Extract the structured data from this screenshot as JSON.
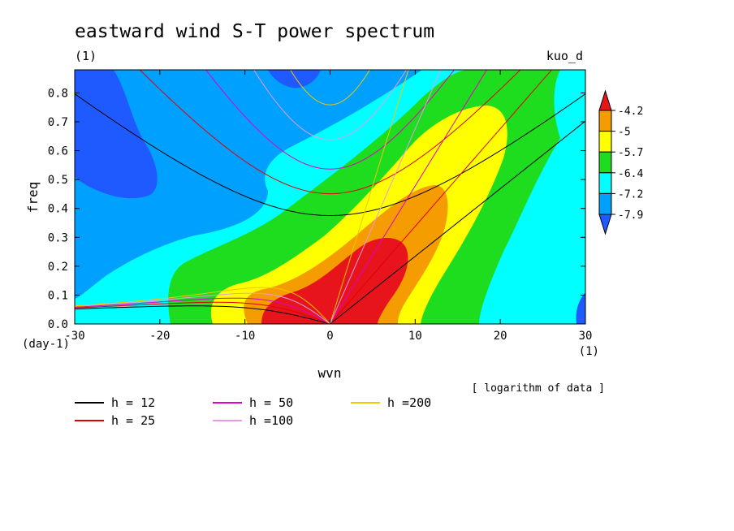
{
  "chart_data": {
    "type": "heatmap",
    "title": "eastward wind S-T power spectrum",
    "subtitle_left": "(1)",
    "subtitle_right": "kuo_d",
    "xlabel": "wvn",
    "ylabel": "freq",
    "x_unit": "(1)",
    "y_unit": "(day-1)",
    "xlim": [
      -30,
      30
    ],
    "ylim": [
      0,
      0.88
    ],
    "x_ticks": [
      -30,
      -20,
      -10,
      0,
      10,
      20,
      30
    ],
    "y_ticks": [
      0.0,
      0.1,
      0.2,
      0.3,
      0.4,
      0.5,
      0.6,
      0.7,
      0.8
    ],
    "note": "[ logarithm of data ]",
    "colorbar": {
      "levels": [
        "-4.2",
        "-5",
        "-5.7",
        "-6.4",
        "-7.2",
        "-7.9"
      ],
      "colors": [
        "#e8141c",
        "#f59c00",
        "#ffff00",
        "#1edc1e",
        "#00ffff",
        "#00a0ff",
        "#1e5aff"
      ]
    },
    "equivalent_depth_legend": [
      {
        "label": "h = 12",
        "h": 12,
        "color": "#000000"
      },
      {
        "label": "h = 25",
        "h": 25,
        "color": "#e00000"
      },
      {
        "label": "h = 50",
        "h": 50,
        "color": "#e000c8"
      },
      {
        "label": "h =100",
        "h": 100,
        "color": "#e59be5"
      },
      {
        "label": "h =200",
        "h": 200,
        "color": "#f0c800"
      }
    ]
  }
}
